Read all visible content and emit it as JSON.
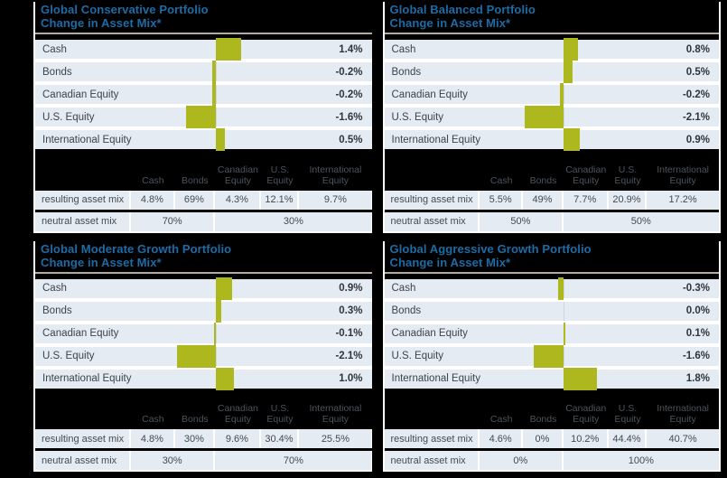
{
  "colors": {
    "background": "#000000",
    "row_background": "#e5ebf2",
    "bar": "#acb81e",
    "title_blue": "#1b6ca7",
    "title_underline_tan": "#b3ab9c",
    "separator_white": "#ffffff",
    "label_text": "#3c434a",
    "table_header_text": "#4c545d"
  },
  "columns": {
    "cash": "Cash",
    "bonds": "Bonds",
    "canadian_equity": "Canadian Equity",
    "us_equity": "U.S. Equity",
    "international_equity": "International Equity"
  },
  "chart_data": [
    {
      "type": "bar",
      "orientation": "horizontal",
      "title": "Global Conservative Portfolio",
      "subtitle": "Change in Asset Mix*",
      "categories": [
        "Cash",
        "Bonds",
        "Canadian Equity",
        "U.S. Equity",
        "International Equity"
      ],
      "values": [
        1.4,
        -0.2,
        -0.2,
        -1.6,
        0.5
      ],
      "unit": "%",
      "axis": "hidden-zero-baseline",
      "value_labels_shown": true
    },
    {
      "type": "bar",
      "orientation": "horizontal",
      "title": "Global Balanced Portfolio",
      "subtitle": "Change in Asset Mix*",
      "categories": [
        "Cash",
        "Bonds",
        "Canadian Equity",
        "U.S. Equity",
        "International Equity"
      ],
      "values": [
        0.8,
        0.5,
        -0.2,
        -2.1,
        0.9
      ],
      "unit": "%",
      "axis": "hidden-zero-baseline",
      "value_labels_shown": true
    },
    {
      "type": "bar",
      "orientation": "horizontal",
      "title": "Global Moderate Growth Portfolio",
      "subtitle": "Change in Asset Mix*",
      "categories": [
        "Cash",
        "Bonds",
        "Canadian Equity",
        "U.S. Equity",
        "International Equity"
      ],
      "values": [
        0.9,
        0.3,
        -0.1,
        -2.1,
        1.0
      ],
      "unit": "%",
      "axis": "hidden-zero-baseline",
      "value_labels_shown": true
    },
    {
      "type": "bar",
      "orientation": "horizontal",
      "title": "Global Aggressive Growth Portfolio",
      "subtitle": "Change in Asset Mix*",
      "categories": [
        "Cash",
        "Bonds",
        "Canadian Equity",
        "U.S. Equity",
        "International Equity"
      ],
      "values": [
        -0.3,
        0.0,
        0.1,
        -1.6,
        1.8
      ],
      "unit": "%",
      "axis": "hidden-zero-baseline",
      "value_labels_shown": true
    }
  ],
  "panels": [
    {
      "title": "Global Conservative Portfolio",
      "subtitle": "Change in Asset Mix*",
      "values_display": [
        "1.4%",
        "-0.2%",
        "-0.2%",
        "-1.6%",
        "0.5%"
      ],
      "resulting_label": "resulting asset mix",
      "neutral_label": "neutral asset mix",
      "resulting": [
        "4.8%",
        "69%",
        "4.3%",
        "12.1%",
        "9.7%"
      ],
      "neutral_cash_bonds": "70%",
      "neutral_equities": "30%"
    },
    {
      "title": "Global Balanced Portfolio",
      "subtitle": "Change in Asset Mix*",
      "values_display": [
        "0.8%",
        "0.5%",
        "-0.2%",
        "-2.1%",
        "0.9%"
      ],
      "resulting_label": "resulting asset mix",
      "neutral_label": "neutral asset mix",
      "resulting": [
        "5.5%",
        "49%",
        "7.7%",
        "20.9%",
        "17.2%"
      ],
      "neutral_cash_bonds": "50%",
      "neutral_equities": "50%"
    },
    {
      "title": "Global Moderate Growth Portfolio",
      "subtitle": "Change in Asset Mix*",
      "values_display": [
        "0.9%",
        "0.3%",
        "-0.1%",
        "-2.1%",
        "1.0%"
      ],
      "resulting_label": "resulting asset mix",
      "neutral_label": "neutral asset mix",
      "resulting": [
        "4.8%",
        "30%",
        "9.6%",
        "30.4%",
        "25.5%"
      ],
      "neutral_cash_bonds": "30%",
      "neutral_equities": "70%"
    },
    {
      "title": "Global Aggressive Growth Portfolio",
      "subtitle": "Change in Asset Mix*",
      "values_display": [
        "-0.3%",
        "0.0%",
        "0.1%",
        "-1.6%",
        "1.8%"
      ],
      "resulting_label": "resulting asset mix",
      "neutral_label": "neutral asset mix",
      "resulting": [
        "4.6%",
        "0%",
        "10.2%",
        "44.4%",
        "40.7%"
      ],
      "neutral_cash_bonds": "0%",
      "neutral_equities": "100%"
    }
  ]
}
